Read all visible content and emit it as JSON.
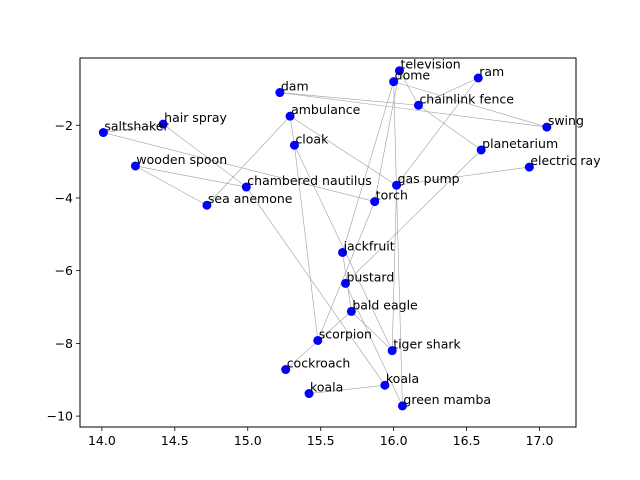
{
  "chart_data": {
    "type": "scatter",
    "title": "",
    "xlabel": "",
    "ylabel": "",
    "xlim": [
      13.85,
      17.25
    ],
    "ylim": [
      -10.3,
      -0.15
    ],
    "x_ticks": [
      14.0,
      14.5,
      15.0,
      15.5,
      16.0,
      16.5,
      17.0
    ],
    "x_tick_labels": [
      "14.0",
      "14.5",
      "15.0",
      "15.5",
      "16.0",
      "16.5",
      "17.0"
    ],
    "y_ticks": [
      -10,
      -8,
      -6,
      -4,
      -2
    ],
    "y_tick_labels": [
      "−10",
      "−8",
      "−6",
      "−4",
      "−2"
    ],
    "grid": false,
    "point_color": "#0000ff",
    "edge_color": "#a0a0a0",
    "points": [
      {
        "label": "television",
        "x": 16.04,
        "y": -0.5
      },
      {
        "label": "dome",
        "x": 16.0,
        "y": -0.8
      },
      {
        "label": "ram",
        "x": 16.58,
        "y": -0.7
      },
      {
        "label": "dam",
        "x": 15.22,
        "y": -1.1
      },
      {
        "label": "chainlink fence",
        "x": 16.17,
        "y": -1.45
      },
      {
        "label": "ambulance",
        "x": 15.29,
        "y": -1.75
      },
      {
        "label": "hair spray",
        "x": 14.42,
        "y": -1.97
      },
      {
        "label": "swing",
        "x": 17.05,
        "y": -2.05
      },
      {
        "label": "saltshaker",
        "x": 14.01,
        "y": -2.2
      },
      {
        "label": "cloak",
        "x": 15.32,
        "y": -2.55
      },
      {
        "label": "planetarium",
        "x": 16.6,
        "y": -2.68
      },
      {
        "label": "wooden spoon",
        "x": 14.23,
        "y": -3.12
      },
      {
        "label": "electric ray",
        "x": 16.93,
        "y": -3.15
      },
      {
        "label": "gas pump",
        "x": 16.02,
        "y": -3.65
      },
      {
        "label": "chambered nautilus",
        "x": 14.99,
        "y": -3.7
      },
      {
        "label": "torch",
        "x": 15.87,
        "y": -4.1
      },
      {
        "label": "sea anemone",
        "x": 14.72,
        "y": -4.2
      },
      {
        "label": "jackfruit",
        "x": 15.65,
        "y": -5.5
      },
      {
        "label": "bustard",
        "x": 15.67,
        "y": -6.35
      },
      {
        "label": "bald eagle",
        "x": 15.71,
        "y": -7.12
      },
      {
        "label": "scorpion",
        "x": 15.48,
        "y": -7.92
      },
      {
        "label": "tiger shark",
        "x": 15.99,
        "y": -8.2
      },
      {
        "label": "cockroach",
        "x": 15.26,
        "y": -8.72
      },
      {
        "label": "koala",
        "x": 15.94,
        "y": -9.15
      },
      {
        "label": "koala",
        "x": 15.42,
        "y": -9.38
      },
      {
        "label": "green mamba",
        "x": 16.06,
        "y": -9.72
      }
    ],
    "edges": [
      [
        "dam",
        "chainlink fence"
      ],
      [
        "dam",
        "swing"
      ],
      [
        "dome",
        "swing"
      ],
      [
        "dome",
        "jackfruit"
      ],
      [
        "dome",
        "green mamba"
      ],
      [
        "television",
        "chainlink fence"
      ],
      [
        "television",
        "torch"
      ],
      [
        "ram",
        "chainlink fence"
      ],
      [
        "ram",
        "gas pump"
      ],
      [
        "chainlink fence",
        "planetarium"
      ],
      [
        "hair spray",
        "chambered nautilus"
      ],
      [
        "saltshaker",
        "hair spray"
      ],
      [
        "saltshaker",
        "torch"
      ],
      [
        "wooden spoon",
        "chambered nautilus"
      ],
      [
        "wooden spoon",
        "sea anemone"
      ],
      [
        "ambulance",
        "sea anemone"
      ],
      [
        "ambulance",
        "gas pump"
      ],
      [
        "ambulance",
        "cloak"
      ],
      [
        "cloak",
        "tiger shark"
      ],
      [
        "cloak",
        "scorpion"
      ],
      [
        "gas pump",
        "electric ray"
      ],
      [
        "gas pump",
        "tiger shark"
      ],
      [
        "planetarium",
        "bustard"
      ],
      [
        "jackfruit",
        "bald eagle"
      ],
      [
        "bustard",
        "green mamba"
      ],
      [
        "bald eagle",
        "cockroach"
      ],
      [
        "bald eagle",
        "tiger shark"
      ],
      [
        "scorpion",
        "torch"
      ],
      [
        "chambered nautilus",
        "koala"
      ],
      [
        "koala",
        "koala"
      ]
    ]
  }
}
